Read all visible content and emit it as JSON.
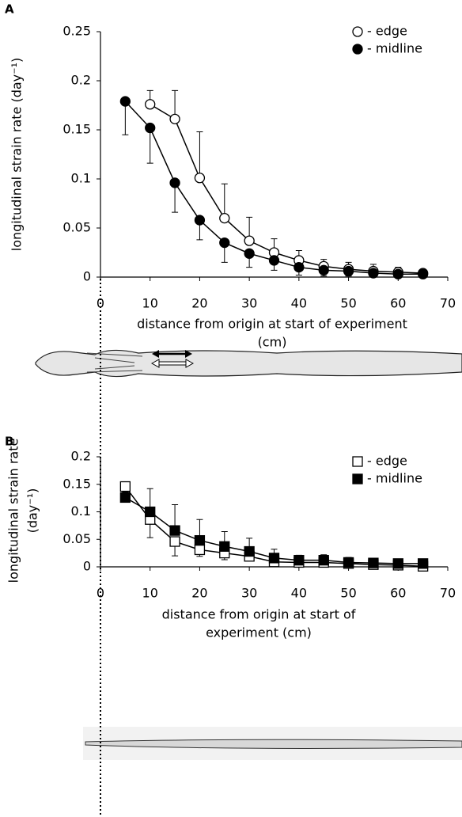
{
  "chart_data": [
    {
      "type": "line",
      "panel_label": "A",
      "y_label": [
        "longitudinal strain rate (day⁻¹)"
      ],
      "x_label": [
        "distance from origin at start of experiment",
        "(cm)"
      ],
      "xlim": [
        0,
        70
      ],
      "xticks": [
        0,
        10,
        20,
        30,
        40,
        50,
        60,
        70
      ],
      "ylim": [
        0,
        0.25
      ],
      "yticks": [
        0,
        0.05,
        0.1,
        0.15,
        0.2,
        0.25
      ],
      "x": [
        5,
        10,
        15,
        20,
        25,
        30,
        35,
        40,
        45,
        50,
        55,
        60,
        65
      ],
      "series": [
        {
          "name": "- edge",
          "color": "#000000",
          "marker": "circle",
          "marker_fill": "#ffffff",
          "error_direction": "up",
          "values": [
            null,
            0.176,
            0.161,
            0.101,
            0.06,
            0.037,
            0.025,
            0.017,
            0.011,
            0.008,
            0.006,
            0.005,
            0.004
          ],
          "errors": [
            null,
            0.014,
            0.029,
            0.047,
            0.035,
            0.024,
            0.014,
            0.01,
            0.007,
            0.007,
            0.007,
            0.005,
            0.003
          ]
        },
        {
          "name": "- midline",
          "color": "#000000",
          "marker": "circle",
          "marker_fill": "#000000",
          "error_direction": "down",
          "values": [
            0.179,
            0.152,
            0.096,
            0.058,
            0.035,
            0.024,
            0.017,
            0.01,
            0.007,
            0.006,
            0.004,
            0.003,
            0.003
          ],
          "errors": [
            0.034,
            0.036,
            0.03,
            0.02,
            0.02,
            0.014,
            0.01,
            0.008,
            0.006,
            0.005,
            0.004,
            0.003,
            0.002
          ]
        }
      ]
    },
    {
      "type": "line",
      "panel_label": "B",
      "y_label": [
        "longitudinal strain rate",
        "(day⁻¹)"
      ],
      "x_label": [
        "distance from origin at start of",
        "experiment (cm)"
      ],
      "xlim": [
        0,
        70
      ],
      "xticks": [
        0,
        10,
        20,
        30,
        40,
        50,
        60,
        70
      ],
      "ylim": [
        0,
        0.2
      ],
      "yticks": [
        0,
        0.05,
        0.1,
        0.15,
        0.2
      ],
      "x": [
        5,
        10,
        15,
        20,
        25,
        30,
        35,
        40,
        45,
        50,
        55,
        60,
        65
      ],
      "series": [
        {
          "name": "- edge",
          "color": "#000000",
          "marker": "square",
          "marker_fill": "#ffffff",
          "error_direction": "down",
          "values": [
            0.146,
            0.086,
            0.046,
            0.031,
            0.025,
            0.019,
            0.009,
            0.008,
            0.008,
            0.006,
            0.004,
            0.003,
            0.001
          ],
          "errors": [
            0.01,
            0.033,
            0.026,
            0.012,
            0.012,
            0.008,
            0.005,
            0.004,
            0.004,
            0.003,
            0.003,
            0.003,
            0.001
          ]
        },
        {
          "name": "- midline",
          "color": "#000000",
          "marker": "square",
          "marker_fill": "#000000",
          "error_direction": "up",
          "values": [
            0.126,
            0.1,
            0.066,
            0.048,
            0.037,
            0.028,
            0.016,
            0.012,
            0.012,
            0.008,
            0.007,
            0.006,
            0.006
          ],
          "errors": [
            0.015,
            0.042,
            0.047,
            0.038,
            0.027,
            0.024,
            0.016,
            0.009,
            0.01,
            0.009,
            0.008,
            0.008,
            0.008
          ]
        }
      ]
    }
  ]
}
